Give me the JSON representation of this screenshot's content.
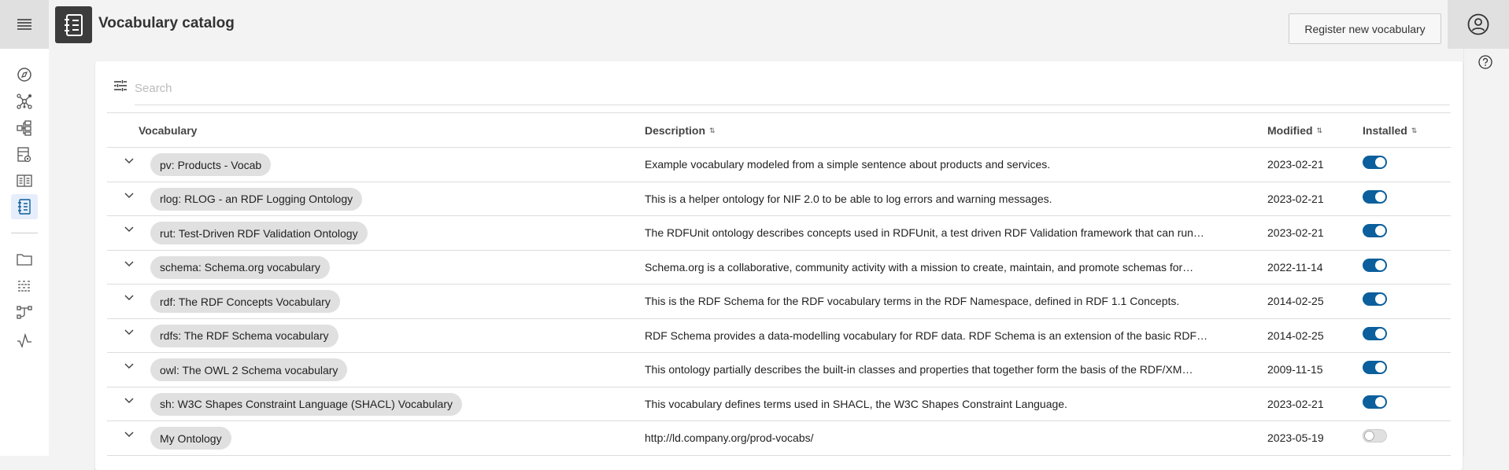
{
  "header": {
    "title": "Vocabulary catalog",
    "register_label": "Register new vocabulary"
  },
  "sidebar": {
    "items": [
      {
        "icon": "compass-icon"
      },
      {
        "icon": "graph-icon"
      },
      {
        "icon": "hierarchy-icon"
      },
      {
        "icon": "dataset-preview-icon"
      },
      {
        "icon": "book-icon"
      },
      {
        "icon": "vocabulary-icon",
        "active": true
      },
      {
        "icon": "folder-icon"
      },
      {
        "icon": "list-icon"
      },
      {
        "icon": "workflow-icon"
      },
      {
        "icon": "activity-icon"
      }
    ]
  },
  "search": {
    "placeholder": "Search",
    "value": ""
  },
  "table": {
    "columns": {
      "vocabulary": "Vocabulary",
      "description": "Description",
      "modified": "Modified",
      "installed": "Installed"
    },
    "rows": [
      {
        "name": "pv: Products - Vocab",
        "description": "Example vocabulary modeled from a simple sentence about products and services.",
        "modified": "2023-02-21",
        "installed": true
      },
      {
        "name": "rlog: RLOG - an RDF Logging Ontology",
        "description": "This is a helper ontology for NIF 2.0 to be able to log errors and warning messages.",
        "modified": "2023-02-21",
        "installed": true
      },
      {
        "name": "rut: Test-Driven RDF Validation Ontology",
        "description": "The RDFUnit ontology describes concepts used in RDFUnit, a test driven RDF Validation framework that can run…",
        "modified": "2023-02-21",
        "installed": true
      },
      {
        "name": "schema: Schema.org vocabulary",
        "description": "Schema.org is a collaborative, community activity with a mission to create, maintain, and promote schemas for…",
        "modified": "2022-11-14",
        "installed": true
      },
      {
        "name": "rdf: The RDF Concepts Vocabulary",
        "description": "This is the RDF Schema for the RDF vocabulary terms in the RDF Namespace, defined in RDF 1.1 Concepts.",
        "modified": "2014-02-25",
        "installed": true
      },
      {
        "name": "rdfs: The RDF Schema vocabulary",
        "description": "RDF Schema provides a data-modelling vocabulary for RDF data. RDF Schema is an extension of the basic RDF…",
        "modified": "2014-02-25",
        "installed": true
      },
      {
        "name": "owl: The OWL 2 Schema vocabulary",
        "description": "This ontology partially describes the built-in classes and properties that together form the basis of the RDF/XM…",
        "modified": "2009-11-15",
        "installed": true
      },
      {
        "name": "sh: W3C Shapes Constraint Language (SHACL) Vocabulary",
        "description": "This vocabulary defines terms used in SHACL, the W3C Shapes Constraint Language.",
        "modified": "2023-02-21",
        "installed": true
      },
      {
        "name": "My Ontology",
        "description": "http://ld.company.org/prod-vocabs/",
        "modified": "2023-05-19",
        "installed": false
      }
    ]
  },
  "colors": {
    "accent": "#0b5f9c",
    "chip": "#e0e0e0"
  }
}
